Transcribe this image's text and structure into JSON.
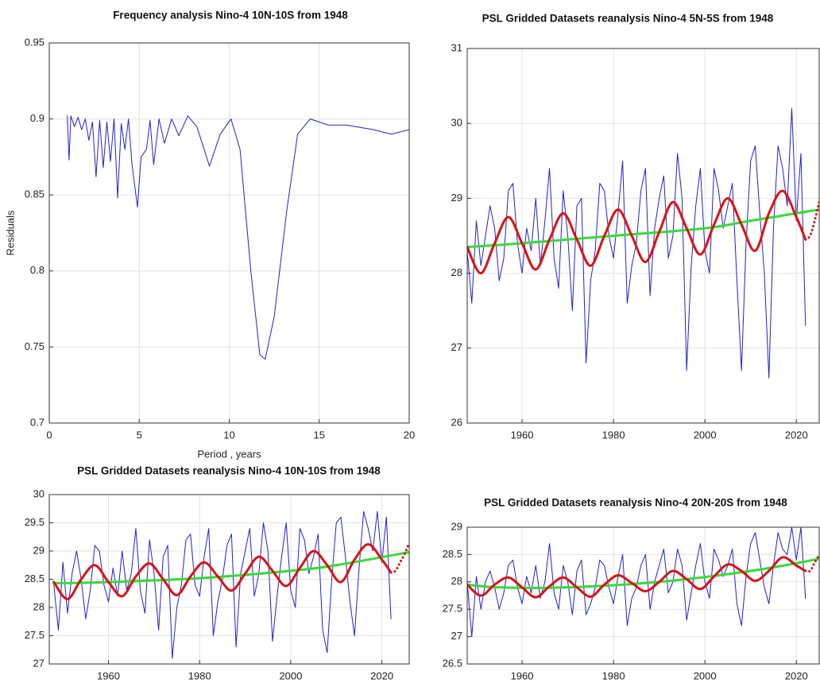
{
  "chart_data": [
    {
      "type": "line",
      "title": "Frequency analysis Nino-4 10N-10S from 1948",
      "xlabel": "Period , years",
      "ylabel": "Residuals",
      "xlim": [
        0,
        20
      ],
      "xticks": [
        0,
        5,
        10,
        15,
        20
      ],
      "ylim": [
        0.7,
        0.95
      ],
      "yticks": [
        0.7,
        0.75,
        0.8,
        0.85,
        0.9,
        0.95
      ],
      "grid": true,
      "series": [
        {
          "color": "#2020d0",
          "line_width": 1,
          "x": [
            1.0,
            1.1,
            1.2,
            1.4,
            1.6,
            1.8,
            2.0,
            2.2,
            2.4,
            2.6,
            2.8,
            3.0,
            3.2,
            3.4,
            3.6,
            3.8,
            4.0,
            4.2,
            4.4,
            4.6,
            4.9,
            5.1,
            5.4,
            5.6,
            5.8,
            6.1,
            6.4,
            6.8,
            7.2,
            7.7,
            8.2,
            8.9,
            9.5,
            10.1,
            10.6,
            11.2,
            11.7,
            12.0,
            12.5,
            13.2,
            13.8,
            14.5,
            15.5,
            16.5,
            18.0,
            19.0,
            20.0
          ],
          "values": [
            0.902,
            0.873,
            0.902,
            0.895,
            0.901,
            0.893,
            0.9,
            0.886,
            0.898,
            0.862,
            0.899,
            0.868,
            0.898,
            0.872,
            0.9,
            0.848,
            0.897,
            0.88,
            0.9,
            0.87,
            0.842,
            0.875,
            0.88,
            0.899,
            0.87,
            0.9,
            0.884,
            0.9,
            0.889,
            0.902,
            0.895,
            0.869,
            0.89,
            0.9,
            0.88,
            0.8,
            0.745,
            0.742,
            0.77,
            0.84,
            0.89,
            0.9,
            0.896,
            0.896,
            0.893,
            0.89,
            0.893
          ]
        }
      ]
    },
    {
      "type": "line",
      "title": "PSL Gridded Datasets reanalysis Nino-4 5N-5S from 1948",
      "xlim": [
        1948,
        2025
      ],
      "xticks": [
        1960,
        1980,
        2000,
        2020
      ],
      "ylim": [
        26,
        31
      ],
      "yticks": [
        26,
        27,
        28,
        29,
        30,
        31
      ],
      "grid": true,
      "series": [
        {
          "color": "#2020d0",
          "line_width": 1,
          "x": [
            1948,
            1949,
            1950,
            1951,
            1952,
            1953,
            1954,
            1955,
            1956,
            1957,
            1958,
            1959,
            1960,
            1961,
            1962,
            1963,
            1964,
            1965,
            1966,
            1967,
            1968,
            1969,
            1970,
            1971,
            1972,
            1973,
            1974,
            1975,
            1976,
            1977,
            1978,
            1979,
            1980,
            1981,
            1982,
            1983,
            1984,
            1985,
            1986,
            1987,
            1988,
            1989,
            1990,
            1991,
            1992,
            1993,
            1994,
            1995,
            1996,
            1997,
            1998,
            1999,
            2000,
            2001,
            2002,
            2003,
            2004,
            2005,
            2006,
            2007,
            2008,
            2009,
            2010,
            2011,
            2012,
            2013,
            2014,
            2015,
            2016,
            2017,
            2018,
            2019,
            2020,
            2021,
            2022
          ],
          "values": [
            28.3,
            27.6,
            28.7,
            28.1,
            28.5,
            28.9,
            28.6,
            27.9,
            28.2,
            29.1,
            29.2,
            28.4,
            28.0,
            28.6,
            28.3,
            29.0,
            28.1,
            28.7,
            29.4,
            28.2,
            27.8,
            29.1,
            28.5,
            27.5,
            28.9,
            29.0,
            26.8,
            27.9,
            28.3,
            29.2,
            29.1,
            28.5,
            28.2,
            28.8,
            29.5,
            27.6,
            28.1,
            28.4,
            29.1,
            29.4,
            27.7,
            28.6,
            29.0,
            29.3,
            28.2,
            28.5,
            29.6,
            29.0,
            26.7,
            28.1,
            28.9,
            29.4,
            28.3,
            28.0,
            29.4,
            29.1,
            28.6,
            28.9,
            29.2,
            27.9,
            26.7,
            28.4,
            29.5,
            29.7,
            28.8,
            28.0,
            26.6,
            28.6,
            29.7,
            29.4,
            28.9,
            30.2,
            28.7,
            29.6,
            27.3
          ]
        },
        {
          "color": "#33dd33",
          "line_width": 3,
          "x": [
            1948,
            1960,
            1980,
            2000,
            2010,
            2025
          ],
          "values": [
            28.35,
            28.4,
            28.5,
            28.6,
            28.7,
            28.85
          ]
        },
        {
          "color": "#dd1111",
          "line_width": 3,
          "x": [
            1948,
            1951,
            1954,
            1957,
            1960,
            1963,
            1966,
            1969,
            1972,
            1975,
            1978,
            1981,
            1984,
            1987,
            1990,
            1993,
            1996,
            1999,
            2002,
            2005,
            2008,
            2011,
            2014,
            2017,
            2020,
            2022
          ],
          "values": [
            28.35,
            28.0,
            28.4,
            28.75,
            28.4,
            28.05,
            28.45,
            28.8,
            28.45,
            28.1,
            28.5,
            28.85,
            28.5,
            28.15,
            28.55,
            28.95,
            28.6,
            28.25,
            28.65,
            29.0,
            28.65,
            28.3,
            28.8,
            29.1,
            28.75,
            28.45
          ]
        },
        {
          "color": "#dd1111",
          "line_width": 3,
          "dash": true,
          "x": [
            2022,
            2023,
            2024,
            2025
          ],
          "values": [
            28.45,
            28.5,
            28.7,
            28.95
          ]
        }
      ]
    },
    {
      "type": "line",
      "title": "PSL Gridded Datasets reanalysis Nino-4 10N-10S from 1948",
      "xlim": [
        1947,
        2026
      ],
      "xticks": [
        1960,
        1980,
        2000,
        2020
      ],
      "ylim": [
        27,
        30
      ],
      "yticks": [
        27,
        27.5,
        28,
        28.5,
        29,
        29.5,
        30
      ],
      "grid": true,
      "series": [
        {
          "color": "#2020d0",
          "line_width": 1,
          "x": [
            1948,
            1949,
            1950,
            1951,
            1952,
            1953,
            1954,
            1955,
            1956,
            1957,
            1958,
            1959,
            1960,
            1961,
            1962,
            1963,
            1964,
            1965,
            1966,
            1967,
            1968,
            1969,
            1970,
            1971,
            1972,
            1973,
            1974,
            1975,
            1976,
            1977,
            1978,
            1979,
            1980,
            1981,
            1982,
            1983,
            1984,
            1985,
            1986,
            1987,
            1988,
            1989,
            1990,
            1991,
            1992,
            1993,
            1994,
            1995,
            1996,
            1997,
            1998,
            1999,
            2000,
            2001,
            2002,
            2003,
            2004,
            2005,
            2006,
            2007,
            2008,
            2009,
            2010,
            2011,
            2012,
            2013,
            2014,
            2015,
            2016,
            2017,
            2018,
            2019,
            2020,
            2021,
            2022
          ],
          "values": [
            28.4,
            27.6,
            28.8,
            27.9,
            28.6,
            29.0,
            28.5,
            27.8,
            28.3,
            29.1,
            29.0,
            28.4,
            28.1,
            28.7,
            28.2,
            29.0,
            28.3,
            28.6,
            29.4,
            28.3,
            27.9,
            29.2,
            28.6,
            27.6,
            28.9,
            29.1,
            27.1,
            28.0,
            28.4,
            29.2,
            29.3,
            28.4,
            28.2,
            28.9,
            29.4,
            27.5,
            28.1,
            28.5,
            29.1,
            29.3,
            27.3,
            28.6,
            29.0,
            29.4,
            28.2,
            28.6,
            29.5,
            29.0,
            27.4,
            28.2,
            28.9,
            29.5,
            28.3,
            28.0,
            29.4,
            29.2,
            28.6,
            28.9,
            29.3,
            27.6,
            27.2,
            28.5,
            29.5,
            29.6,
            28.9,
            28.1,
            27.5,
            28.7,
            29.7,
            29.4,
            29.0,
            29.7,
            28.8,
            29.6,
            27.8
          ]
        },
        {
          "color": "#33dd33",
          "line_width": 3,
          "x": [
            1948,
            1960,
            1980,
            2000,
            2010,
            2026
          ],
          "values": [
            28.43,
            28.45,
            28.52,
            28.65,
            28.75,
            28.98
          ]
        },
        {
          "color": "#dd1111",
          "line_width": 3,
          "x": [
            1948,
            1951,
            1954,
            1957,
            1960,
            1963,
            1966,
            1969,
            1972,
            1975,
            1978,
            1981,
            1984,
            1987,
            1990,
            1993,
            1996,
            1999,
            2002,
            2005,
            2008,
            2011,
            2014,
            2017,
            2020,
            2022
          ],
          "values": [
            28.45,
            28.15,
            28.5,
            28.75,
            28.45,
            28.2,
            28.55,
            28.78,
            28.5,
            28.22,
            28.55,
            28.8,
            28.55,
            28.3,
            28.6,
            28.9,
            28.65,
            28.38,
            28.7,
            29.0,
            28.75,
            28.45,
            28.85,
            29.12,
            28.85,
            28.62
          ]
        },
        {
          "color": "#dd1111",
          "line_width": 3,
          "dash": true,
          "x": [
            2022,
            2023,
            2024,
            2025,
            2026
          ],
          "values": [
            28.62,
            28.65,
            28.8,
            28.95,
            29.15
          ]
        }
      ]
    },
    {
      "type": "line",
      "title": "PSL Gridded Datasets reanalysis Nino-4 20N-20S from 1948",
      "xlim": [
        1948,
        2025
      ],
      "xticks": [
        1960,
        1980,
        2000,
        2020
      ],
      "ylim": [
        26.5,
        29
      ],
      "yticks": [
        26.5,
        27,
        27.5,
        28,
        28.5,
        29
      ],
      "grid": true,
      "series": [
        {
          "color": "#2020d0",
          "line_width": 1,
          "x": [
            1948,
            1949,
            1950,
            1951,
            1952,
            1953,
            1954,
            1955,
            1956,
            1957,
            1958,
            1959,
            1960,
            1961,
            1962,
            1963,
            1964,
            1965,
            1966,
            1967,
            1968,
            1969,
            1970,
            1971,
            1972,
            1973,
            1974,
            1975,
            1976,
            1977,
            1978,
            1979,
            1980,
            1981,
            1982,
            1983,
            1984,
            1985,
            1986,
            1987,
            1988,
            1989,
            1990,
            1991,
            1992,
            1993,
            1994,
            1995,
            1996,
            1997,
            1998,
            1999,
            2000,
            2001,
            2002,
            2003,
            2004,
            2005,
            2006,
            2007,
            2008,
            2009,
            2010,
            2011,
            2012,
            2013,
            2014,
            2015,
            2016,
            2017,
            2018,
            2019,
            2020,
            2021,
            2022
          ],
          "values": [
            28.0,
            27.0,
            28.1,
            27.5,
            28.0,
            28.2,
            27.9,
            27.5,
            27.8,
            28.3,
            28.4,
            27.9,
            27.6,
            28.1,
            27.8,
            28.3,
            27.7,
            28.0,
            28.7,
            27.8,
            27.5,
            28.3,
            28.0,
            27.4,
            28.2,
            28.4,
            27.4,
            27.6,
            27.9,
            28.4,
            28.3,
            27.9,
            27.6,
            28.1,
            28.5,
            27.2,
            27.7,
            27.9,
            28.3,
            28.5,
            27.5,
            28.0,
            28.3,
            28.6,
            27.8,
            28.0,
            28.6,
            28.3,
            27.3,
            27.8,
            28.3,
            28.7,
            28.0,
            27.7,
            28.6,
            28.4,
            28.1,
            28.3,
            28.6,
            27.6,
            27.2,
            28.1,
            28.7,
            28.9,
            28.4,
            27.9,
            27.6,
            28.3,
            28.9,
            28.6,
            28.5,
            29.0,
            28.4,
            29.0,
            27.7
          ]
        },
        {
          "color": "#33dd33",
          "line_width": 3,
          "x": [
            1948,
            1955,
            1970,
            1990,
            2010,
            2025
          ],
          "values": [
            27.95,
            27.9,
            27.9,
            28.0,
            28.2,
            28.42
          ]
        },
        {
          "color": "#dd1111",
          "line_width": 3,
          "x": [
            1948,
            1951,
            1954,
            1957,
            1960,
            1963,
            1966,
            1969,
            1972,
            1975,
            1978,
            1981,
            1984,
            1987,
            1990,
            1993,
            1996,
            1999,
            2002,
            2005,
            2008,
            2011,
            2014,
            2017,
            2020,
            2022
          ],
          "values": [
            27.95,
            27.75,
            27.95,
            28.08,
            27.9,
            27.72,
            27.92,
            28.08,
            27.9,
            27.73,
            27.95,
            28.12,
            27.98,
            27.83,
            28.0,
            28.2,
            28.05,
            27.87,
            28.1,
            28.32,
            28.2,
            28.02,
            28.2,
            28.45,
            28.3,
            28.2
          ]
        },
        {
          "color": "#dd1111",
          "line_width": 3,
          "dash": true,
          "x": [
            2022,
            2023,
            2024,
            2025
          ],
          "values": [
            28.2,
            28.2,
            28.35,
            28.5
          ]
        }
      ]
    }
  ]
}
